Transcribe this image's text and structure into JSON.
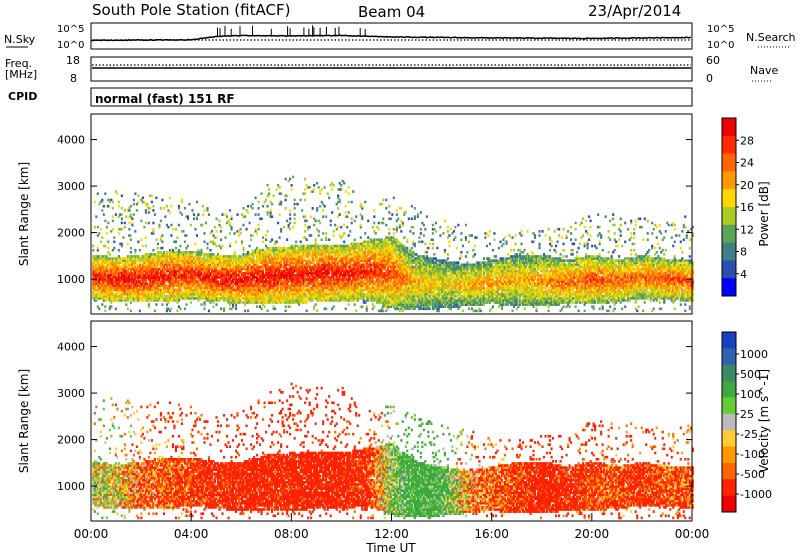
{
  "header": {
    "title": "South Pole Station (fitACF)",
    "beam": "Beam 04",
    "date": "23/Apr/2014"
  },
  "panels": {
    "nsky": {
      "label": "N.Sky",
      "tick_top": "10^5",
      "tick_bottom": "10^0",
      "right_label": "N.Search"
    },
    "freq": {
      "label_line1": "Freq.",
      "label_line2": "[MHz]",
      "tick_top": "18",
      "tick_bottom": "8",
      "right_tick_top": "60",
      "right_tick_bottom": "0",
      "right_label": "Nave"
    },
    "cpid": {
      "label": "CPID",
      "mode": "normal (fast) 151 RF"
    }
  },
  "colors": {
    "power_scale": [
      "#0000ff",
      "#2a4fb0",
      "#3f7f86",
      "#5ba35b",
      "#aacc22",
      "#ffd700",
      "#ff9900",
      "#ff6600",
      "#ff2a00",
      "#ee0000"
    ],
    "velocity_scale": [
      "#1a3fc0",
      "#2f62b0",
      "#3a8a6a",
      "#3fa840",
      "#66cc33",
      "#bbbbbb",
      "#ffcc33",
      "#ff9900",
      "#ff6600",
      "#ff2200",
      "#ee0000"
    ]
  },
  "chart_data": [
    {
      "type": "heatmap",
      "name": "power",
      "ylabel": "Slant Range [km]",
      "ylim": [
        250,
        4550
      ],
      "yticks": [
        1000,
        2000,
        3000,
        4000
      ],
      "xlim": [
        0,
        24
      ],
      "colorbar_label": "Power [dB]",
      "colorbar_ticks": [
        "4",
        "8",
        "12",
        "16",
        "20",
        "24",
        "28"
      ],
      "colorbar_range": [
        0,
        32
      ],
      "x": [
        0,
        1,
        2,
        3,
        4,
        5,
        6,
        7,
        8,
        9,
        10,
        11,
        12,
        13,
        14,
        15,
        16,
        17,
        18,
        19,
        20,
        21,
        22,
        23,
        24
      ],
      "band_low_km": [
        550,
        500,
        500,
        500,
        550,
        500,
        450,
        450,
        450,
        500,
        500,
        550,
        350,
        300,
        350,
        400,
        450,
        400,
        400,
        450,
        450,
        500,
        550,
        550,
        500
      ],
      "band_high_km": [
        1500,
        1450,
        1500,
        1600,
        1600,
        1500,
        1500,
        1650,
        1700,
        1700,
        1700,
        1800,
        1900,
        1500,
        1400,
        1300,
        1400,
        1500,
        1500,
        1400,
        1500,
        1400,
        1500,
        1400,
        1400
      ],
      "peak_db": [
        28,
        30,
        30,
        29,
        28,
        30,
        30,
        30,
        30,
        30,
        30,
        29,
        26,
        20,
        18,
        20,
        22,
        20,
        22,
        24,
        26,
        26,
        24,
        26,
        26
      ],
      "sparse_high_km": [
        2800,
        2900,
        2800,
        2800,
        2700,
        2500,
        2600,
        3000,
        3200,
        3100,
        3100,
        2600,
        2800,
        2500,
        2300,
        2200,
        2000,
        2000,
        2100,
        2100,
        2400,
        2400,
        2300,
        2200,
        2400
      ]
    },
    {
      "type": "heatmap",
      "name": "velocity",
      "ylabel": "Slant Range [km]",
      "ylim": [
        250,
        4550
      ],
      "yticks": [
        1000,
        2000,
        3000,
        4000
      ],
      "xlim": [
        0,
        24
      ],
      "xlabel": "Time UT",
      "xticks": [
        "00:00",
        "04:00",
        "08:00",
        "12:00",
        "16:00",
        "20:00",
        "00:00"
      ],
      "colorbar_label": "Velocity [m s^-1]",
      "colorbar_ticks": [
        "1000",
        "500",
        "100",
        "25",
        "-25",
        "-100",
        "-500",
        "-1000"
      ],
      "x": [
        0,
        1,
        2,
        3,
        4,
        5,
        6,
        7,
        8,
        9,
        10,
        11,
        12,
        13,
        14,
        15,
        16,
        17,
        18,
        19,
        20,
        21,
        22,
        23,
        24
      ],
      "mean_velocity": [
        50,
        20,
        -80,
        -120,
        -150,
        -180,
        -200,
        -200,
        -200,
        -220,
        -200,
        -180,
        100,
        200,
        150,
        -50,
        -100,
        -150,
        -200,
        -180,
        -150,
        -120,
        -150,
        -130,
        -100
      ]
    }
  ],
  "series_nsky": {
    "type": "line",
    "x": [
      0,
      4,
      5,
      6,
      8,
      10,
      12,
      16,
      20,
      24
    ],
    "values": [
      1.6,
      1.7,
      2.4,
      2.6,
      2.5,
      2.6,
      2.3,
      2.1,
      2.0,
      2.2
    ]
  },
  "series_freq": {
    "type": "line",
    "x": [
      0,
      24
    ],
    "values": [
      11.2,
      11.2
    ]
  }
}
